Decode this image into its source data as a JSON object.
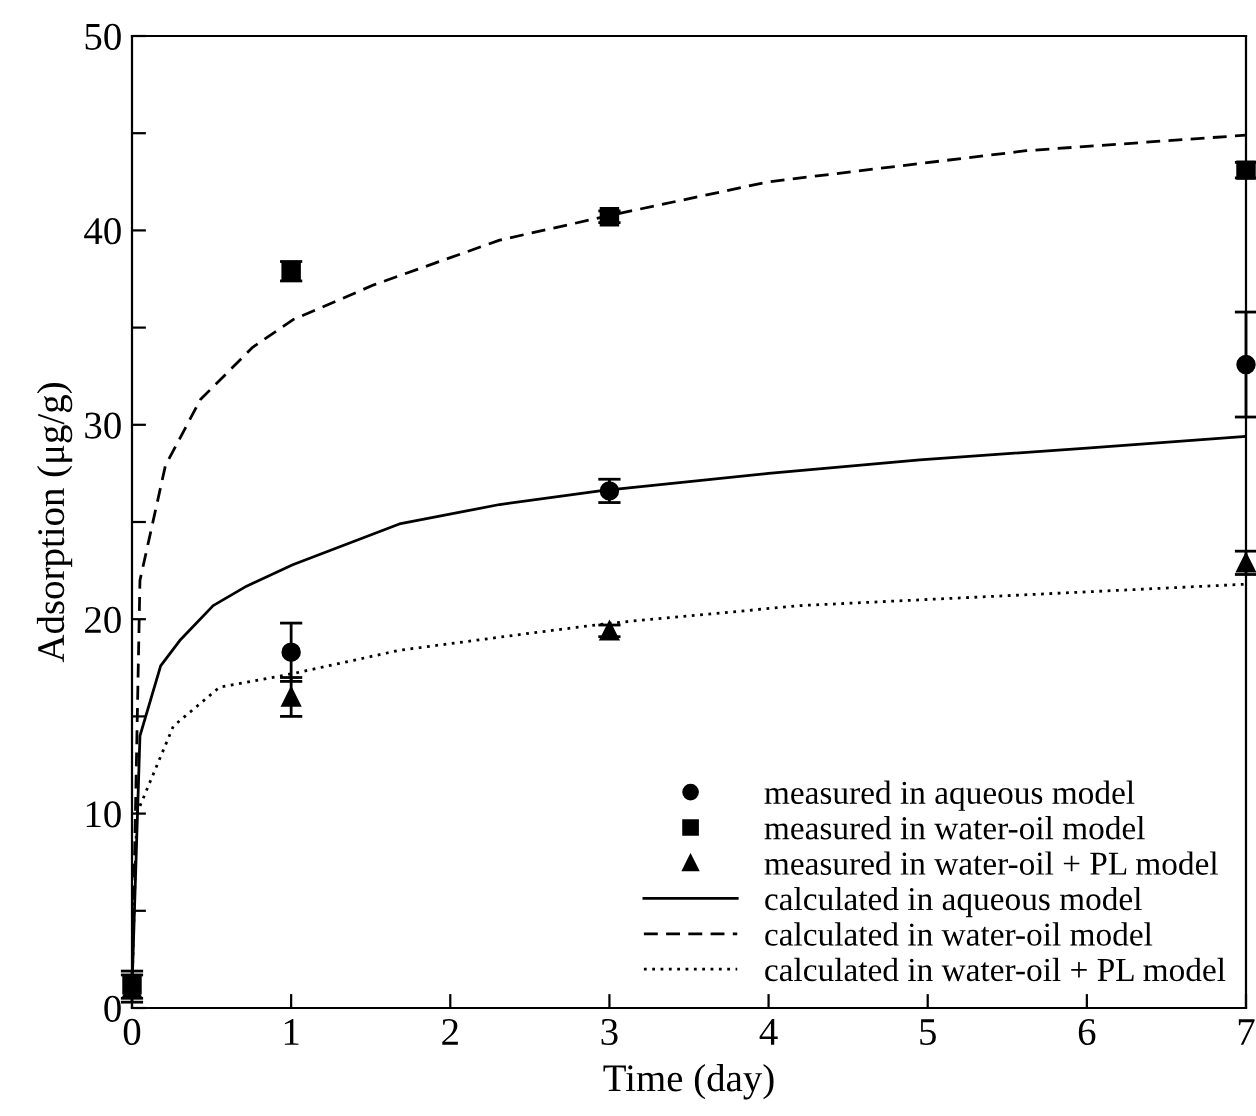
{
  "chart_data": {
    "type": "scatter",
    "xlabel": "Time (day)",
    "ylabel": "Adsorption (μg/g)",
    "xlim": [
      0,
      7
    ],
    "ylim": [
      0,
      50
    ],
    "xticks": [
      0,
      1,
      2,
      3,
      4,
      5,
      6,
      7
    ],
    "yticks": [
      0,
      {
        "value": 5,
        "label": null
      },
      10,
      {
        "value": 15,
        "label": null
      },
      20,
      {
        "value": 25,
        "label": null
      },
      30,
      {
        "value": 35,
        "label": null
      },
      40,
      {
        "value": 45,
        "label": null
      },
      50
    ],
    "grid": false,
    "legend": "bottom right",
    "series": [
      {
        "name": "measured in aqueous model",
        "marker": "circle",
        "color": "#000000",
        "x": [
          1,
          3,
          7
        ],
        "values": [
          18.3,
          26.6,
          33.1
        ],
        "errors": [
          1.5,
          0.6,
          2.7
        ]
      },
      {
        "name": "measured in water-oil model",
        "marker": "square",
        "color": "#000000",
        "x": [
          0,
          1,
          3,
          7
        ],
        "values": [
          1.2,
          37.9,
          40.7,
          43.1
        ],
        "errors": [
          0.7,
          0.5,
          0.3,
          0.4
        ]
      },
      {
        "name": "measured in water-oil + PL model",
        "marker": "triangle",
        "color": "#000000",
        "x": [
          0,
          1,
          3,
          7
        ],
        "values": [
          1.0,
          16.0,
          19.4,
          22.9
        ],
        "errors": [
          0.7,
          1.0,
          0.3,
          0.6
        ]
      },
      {
        "name": "calculated in aqueous model",
        "type": "line",
        "line_style": "solid",
        "color": "#000000",
        "x": [
          0,
          0.05,
          0.18,
          0.3,
          0.51,
          0.72,
          1.01,
          1.68,
          2.31,
          2.94,
          4.0,
          4.95,
          6.0,
          7.0
        ],
        "values": [
          1,
          14.0,
          17.6,
          18.9,
          20.7,
          21.7,
          22.8,
          24.9,
          25.9,
          26.6,
          27.5,
          28.2,
          28.8,
          29.4
        ]
      },
      {
        "name": "calculated in water-oil model",
        "type": "line",
        "line_style": "dashed",
        "color": "#000000",
        "x": [
          0,
          0.05,
          0.21,
          0.43,
          0.76,
          1.01,
          1.52,
          2.31,
          3.02,
          4.0,
          5.62,
          7.0
        ],
        "values": [
          1,
          22.0,
          27.9,
          31.3,
          34.0,
          35.4,
          37.2,
          39.5,
          40.8,
          42.5,
          44.1,
          44.9
        ]
      },
      {
        "name": "calculated in water-oil + PL model",
        "type": "line",
        "line_style": "dotted",
        "color": "#000000",
        "x": [
          0,
          0.03,
          0.26,
          0.55,
          1.01,
          1.68,
          2.52,
          3.01,
          4.2,
          7.0
        ],
        "values": [
          1,
          10.0,
          14.5,
          16.5,
          17.2,
          18.4,
          19.3,
          19.8,
          20.7,
          21.8
        ]
      }
    ]
  }
}
